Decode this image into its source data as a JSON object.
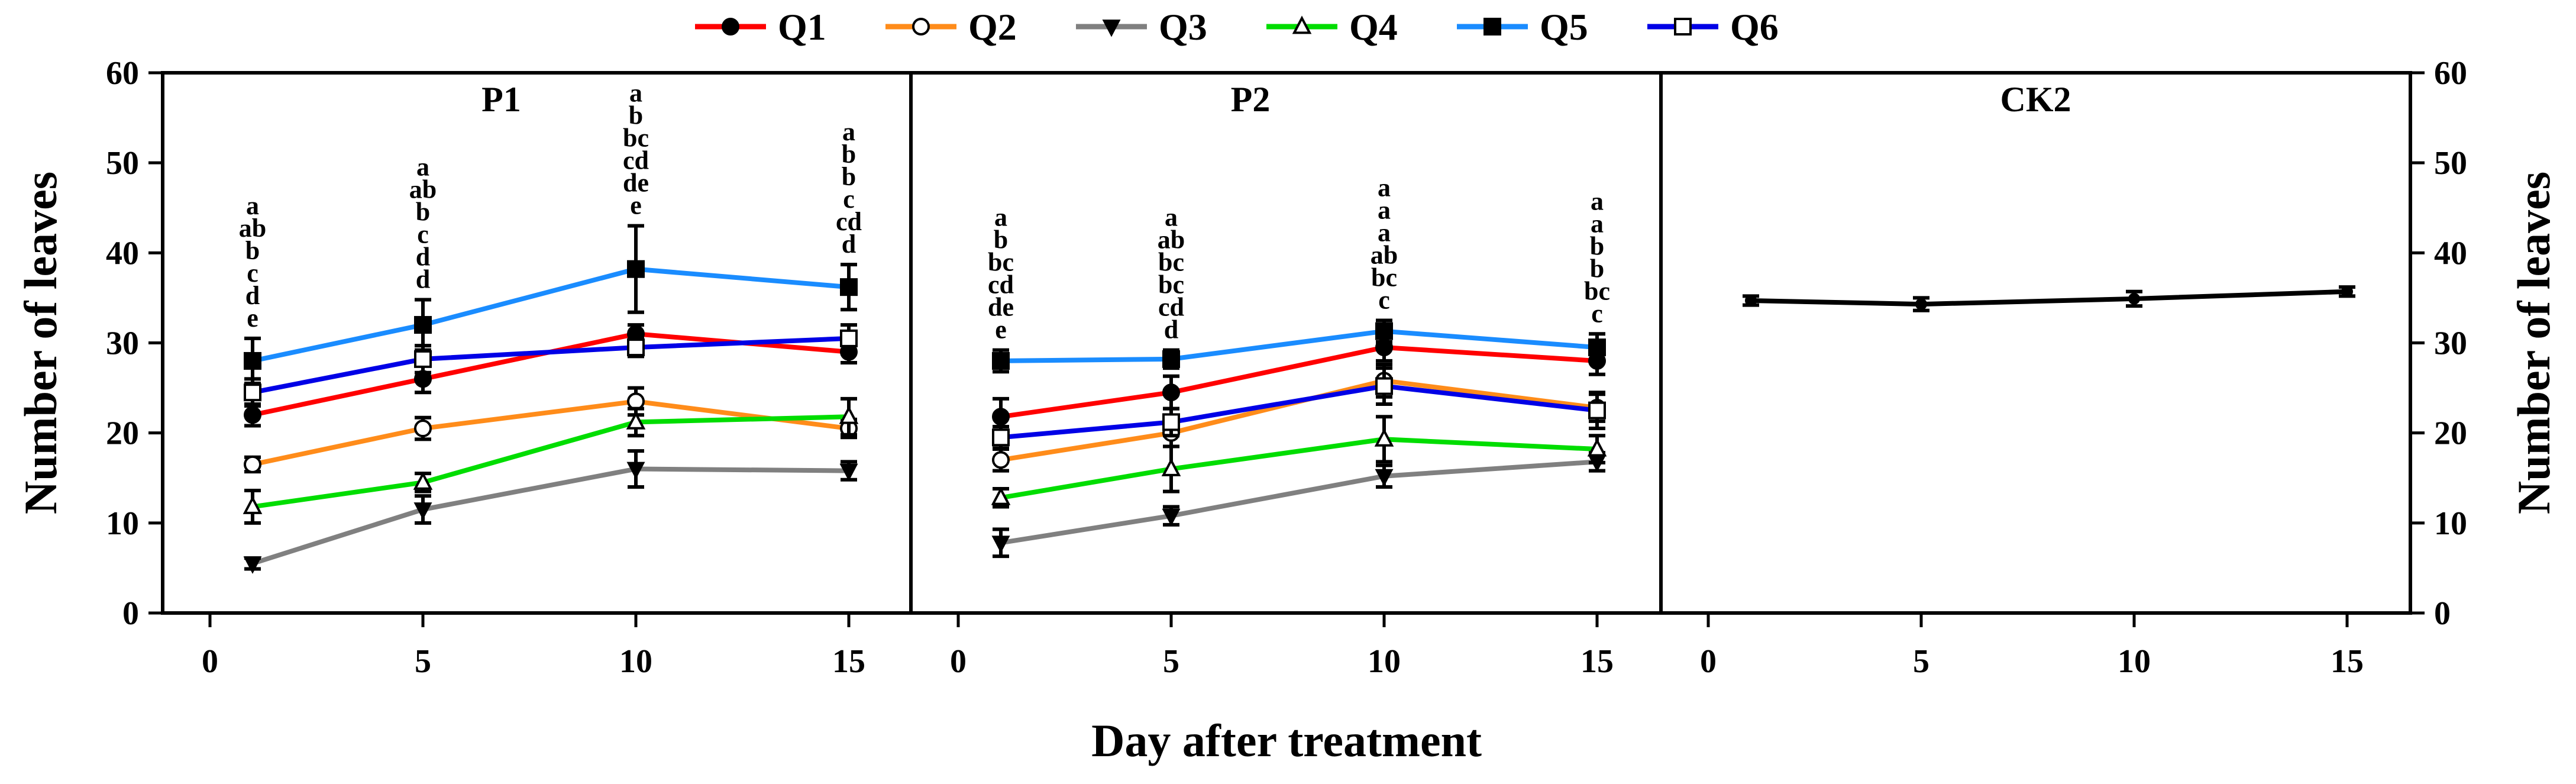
{
  "chart_data": {
    "type": "line",
    "xlabel": "Day after treatment",
    "ylabel_left": "Number of leaves",
    "ylabel_right": "Number of leaves",
    "ylim": [
      0,
      60
    ],
    "y_ticks": [
      "0",
      "10",
      "20",
      "30",
      "40",
      "50",
      "60"
    ],
    "x_ticks": [
      "0",
      "5",
      "10",
      "15"
    ],
    "x": [
      1,
      5,
      10,
      15
    ],
    "legend": {
      "placement": "top-center",
      "entries": [
        {
          "name": "Q1",
          "color": "#ff0000",
          "marker": "filled-circle"
        },
        {
          "name": "Q2",
          "color": "#ff8c1a",
          "marker": "open-circle"
        },
        {
          "name": "Q3",
          "color": "#808080",
          "marker": "filled-triangle-down"
        },
        {
          "name": "Q4",
          "color": "#00dd00",
          "marker": "open-triangle-up"
        },
        {
          "name": "Q5",
          "color": "#1a8cff",
          "marker": "filled-square"
        },
        {
          "name": "Q6",
          "color": "#0000e6",
          "marker": "open-square"
        }
      ]
    },
    "panels": [
      {
        "title": "P1",
        "series": [
          {
            "name": "Q1",
            "values": [
              22.0,
              26.0,
              31.0,
              29.0
            ],
            "errors": [
              1.2,
              1.5,
              1.0,
              1.2
            ]
          },
          {
            "name": "Q2",
            "values": [
              16.5,
              20.5,
              23.5,
              20.5
            ],
            "errors": [
              0.8,
              1.2,
              1.5,
              1.0
            ]
          },
          {
            "name": "Q3",
            "values": [
              5.5,
              11.5,
              16.0,
              15.8
            ],
            "errors": [
              0.6,
              1.5,
              2.0,
              1.0
            ]
          },
          {
            "name": "Q4",
            "values": [
              11.8,
              14.5,
              21.2,
              21.8
            ],
            "errors": [
              1.8,
              1.0,
              1.5,
              2.0
            ]
          },
          {
            "name": "Q5",
            "values": [
              28.0,
              32.0,
              38.2,
              36.2
            ],
            "errors": [
              2.5,
              2.8,
              4.8,
              2.5
            ]
          },
          {
            "name": "Q6",
            "values": [
              24.5,
              28.2,
              29.5,
              30.5
            ],
            "errors": [
              1.5,
              1.5,
              1.0,
              1.5
            ]
          }
        ],
        "annotations": [
          [
            "a",
            "ab",
            "b",
            "c",
            "d",
            "e"
          ],
          [
            "a",
            "ab",
            "b",
            "c",
            "d",
            "d"
          ],
          [
            "a",
            "b",
            "bc",
            "cd",
            "de",
            "e"
          ],
          [
            "a",
            "b",
            "b",
            "c",
            "cd",
            "d"
          ]
        ]
      },
      {
        "title": "P2",
        "series": [
          {
            "name": "Q1",
            "values": [
              21.8,
              24.5,
              29.5,
              28.0
            ],
            "errors": [
              2.0,
              1.8,
              1.5,
              1.5
            ]
          },
          {
            "name": "Q2",
            "values": [
              17.0,
              20.0,
              25.8,
              22.8
            ],
            "errors": [
              1.2,
              1.5,
              1.8,
              1.5
            ]
          },
          {
            "name": "Q3",
            "values": [
              7.8,
              10.8,
              15.2,
              16.8
            ],
            "errors": [
              1.5,
              1.0,
              1.2,
              1.0
            ]
          },
          {
            "name": "Q4",
            "values": [
              12.8,
              16.0,
              19.3,
              18.2
            ],
            "errors": [
              1.0,
              2.5,
              2.5,
              1.5
            ]
          },
          {
            "name": "Q5",
            "values": [
              28.0,
              28.2,
              31.3,
              29.5
            ],
            "errors": [
              1.2,
              1.0,
              1.2,
              1.5
            ]
          },
          {
            "name": "Q6",
            "values": [
              19.5,
              21.2,
              25.2,
              22.5
            ],
            "errors": [
              1.2,
              1.5,
              2.0,
              2.0
            ]
          }
        ],
        "annotations": [
          [
            "a",
            "b",
            "bc",
            "cd",
            "de",
            "e"
          ],
          [
            "a",
            "ab",
            "bc",
            "bc",
            "cd",
            "d"
          ],
          [
            "a",
            "a",
            "a",
            "ab",
            "bc",
            "c"
          ],
          [
            "a",
            "a",
            "b",
            "b",
            "bc",
            "c"
          ]
        ]
      },
      {
        "title": "CK2",
        "series": [
          {
            "name": "CK2",
            "color": "#000000",
            "values": [
              34.7,
              34.3,
              34.9,
              35.7
            ],
            "errors": [
              0.5,
              0.7,
              0.8,
              0.5
            ]
          }
        ],
        "annotations": []
      }
    ]
  }
}
